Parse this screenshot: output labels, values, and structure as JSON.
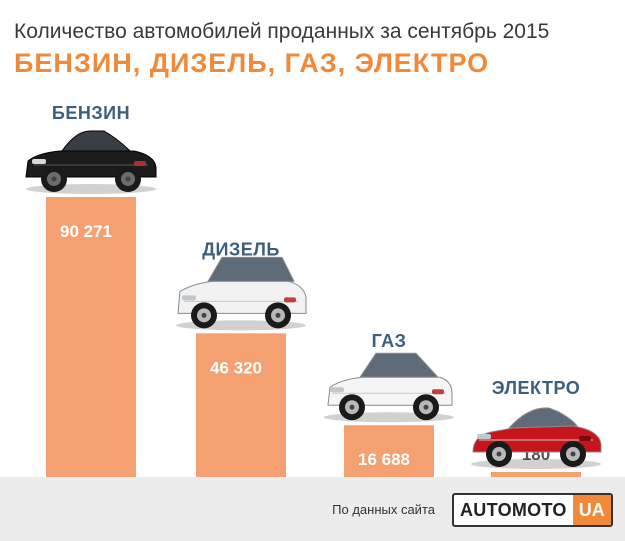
{
  "header": {
    "title": "Количество автомобилей проданных за сентябрь 2015",
    "subtitle": "БЕНЗИН, ДИЗЕЛЬ, ГАЗ,  ЭЛЕКТРО"
  },
  "chart_data": {
    "type": "bar",
    "categories": [
      "БЕНЗИН",
      "ДИЗЕЛЬ",
      "ГАЗ",
      "ЭЛЕКТРО"
    ],
    "values": [
      90271,
      46320,
      16688,
      180
    ],
    "value_labels": [
      "90 271",
      "46 320",
      "16 688",
      "180"
    ],
    "car_icons": [
      "sedan-car-icon",
      "suv-car-icon",
      "compact-car-icon",
      "sports-car-icon"
    ],
    "title": "Количество автомобилей проданных за сентябрь 2015",
    "xlabel": "",
    "ylabel": "",
    "grid": false,
    "bar_color": "#f4a070",
    "car_colors": [
      "#1c1c1c",
      "#f2f2f2",
      "#f5f5f5",
      "#c8141c"
    ]
  },
  "footer": {
    "source_text": "По данных сайта",
    "logo_main": "AUTOMOTO",
    "logo_suffix": "UA"
  },
  "colors": {
    "accent": "#f08a3a",
    "category_label": "#3b5f7d",
    "footer_bg": "#ececec"
  }
}
